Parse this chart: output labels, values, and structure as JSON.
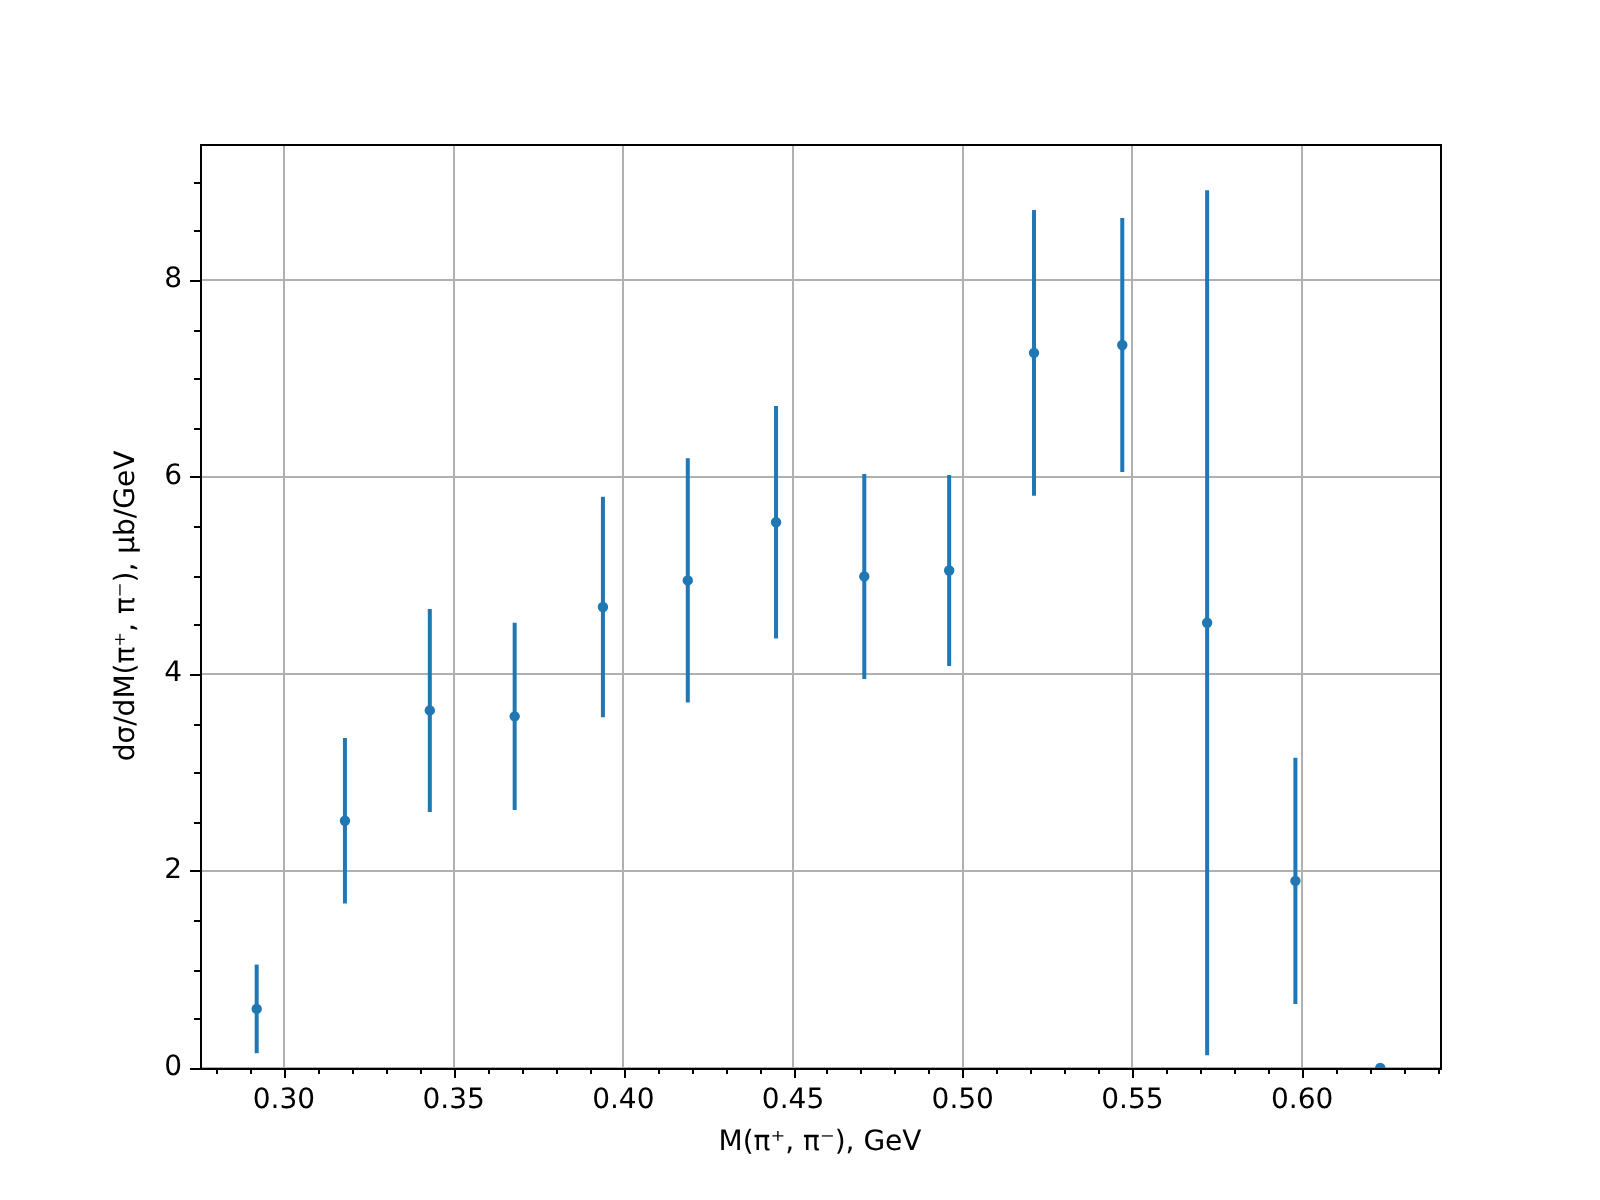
{
  "chart_data": {
    "type": "scatter",
    "xlabel": "M(π⁺, π⁻), GeV",
    "ylabel": "dσ/dM(π⁺, π⁻), μb/GeV",
    "x": [
      0.292,
      0.318,
      0.343,
      0.368,
      0.394,
      0.419,
      0.445,
      0.471,
      0.496,
      0.521,
      0.547,
      0.572,
      0.598,
      0.623
    ],
    "values": [
      0.6,
      2.51,
      3.63,
      3.57,
      4.68,
      4.95,
      5.54,
      4.99,
      5.05,
      7.26,
      7.34,
      4.52,
      1.9,
      0
    ],
    "errors": [
      0.45,
      0.84,
      1.03,
      0.95,
      1.12,
      1.24,
      1.18,
      1.04,
      0.97,
      1.45,
      1.29,
      4.39,
      1.25,
      null
    ],
    "color": "#1f77b4",
    "marker": "circle",
    "grid": true,
    "xlim": [
      0.2753,
      0.6406
    ],
    "ylim": [
      0,
      9.38
    ],
    "xticks": [
      {
        "value": 0.28,
        "label": null
      },
      {
        "value": 0.29,
        "label": null
      },
      {
        "value": 0.3,
        "label": "0.30"
      },
      {
        "value": 0.31,
        "label": null
      },
      {
        "value": 0.32,
        "label": null
      },
      {
        "value": 0.33,
        "label": null
      },
      {
        "value": 0.34,
        "label": null
      },
      0.35,
      {
        "value": 0.36,
        "label": null
      },
      {
        "value": 0.37,
        "label": null
      },
      {
        "value": 0.38,
        "label": null
      },
      {
        "value": 0.39,
        "label": null
      },
      {
        "value": 0.4,
        "label": "0.40"
      },
      {
        "value": 0.41,
        "label": null
      },
      {
        "value": 0.42,
        "label": null
      },
      {
        "value": 0.43,
        "label": null
      },
      {
        "value": 0.44,
        "label": null
      },
      0.45,
      {
        "value": 0.46,
        "label": null
      },
      {
        "value": 0.47,
        "label": null
      },
      {
        "value": 0.48,
        "label": null
      },
      {
        "value": 0.49,
        "label": null
      },
      {
        "value": 0.5,
        "label": "0.50"
      },
      {
        "value": 0.51,
        "label": null
      },
      {
        "value": 0.52,
        "label": null
      },
      {
        "value": 0.53,
        "label": null
      },
      {
        "value": 0.54,
        "label": null
      },
      0.55,
      {
        "value": 0.56,
        "label": null
      },
      {
        "value": 0.57,
        "label": null
      },
      {
        "value": 0.58,
        "label": null
      },
      {
        "value": 0.59,
        "label": null
      },
      {
        "value": 0.6,
        "label": "0.60"
      },
      {
        "value": 0.61,
        "label": null
      },
      {
        "value": 0.62,
        "label": null
      },
      {
        "value": 0.63,
        "label": null
      },
      {
        "value": 0.64,
        "label": null
      }
    ],
    "yticks": [
      0,
      {
        "value": 0.5,
        "label": null
      },
      {
        "value": 1,
        "label": null
      },
      {
        "value": 1.5,
        "label": null
      },
      2,
      {
        "value": 2.5,
        "label": null
      },
      {
        "value": 3,
        "label": null
      },
      {
        "value": 3.5,
        "label": null
      },
      4,
      {
        "value": 4.5,
        "label": null
      },
      {
        "value": 5,
        "label": null
      },
      {
        "value": 5.5,
        "label": null
      },
      6,
      {
        "value": 6.5,
        "label": null
      },
      {
        "value": 7,
        "label": null
      },
      {
        "value": 7.5,
        "label": null
      },
      8,
      {
        "value": 8.5,
        "label": null
      },
      {
        "value": 9,
        "label": null
      }
    ]
  }
}
